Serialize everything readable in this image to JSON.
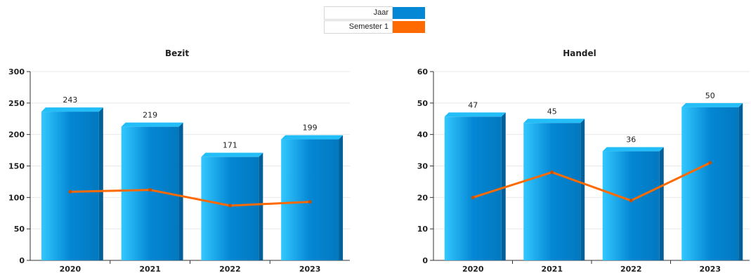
{
  "legend": {
    "items": [
      {
        "label": "Jaar",
        "color": "#0487d4"
      },
      {
        "label": "Semester 1",
        "color": "#ff6a00"
      }
    ]
  },
  "chart_data": [
    {
      "type": "bar",
      "title": "Bezit",
      "categories": [
        "2020",
        "2021",
        "2022",
        "2023"
      ],
      "series": [
        {
          "name": "Jaar",
          "type": "bar",
          "values": [
            243,
            219,
            171,
            199
          ]
        },
        {
          "name": "Semester 1",
          "type": "line",
          "values": [
            109,
            112,
            87,
            93
          ]
        }
      ],
      "ylim": [
        0,
        300
      ],
      "yticks": [
        0,
        50,
        100,
        150,
        200,
        250,
        300
      ],
      "grid": true,
      "legend": "top-center"
    },
    {
      "type": "bar",
      "title": "Handel",
      "categories": [
        "2020",
        "2021",
        "2022",
        "2023"
      ],
      "series": [
        {
          "name": "Jaar",
          "type": "bar",
          "values": [
            47,
            45,
            36,
            50
          ]
        },
        {
          "name": "Semester 1",
          "type": "line",
          "values": [
            20,
            28,
            19,
            31
          ]
        }
      ],
      "ylim": [
        0,
        60
      ],
      "yticks": [
        0,
        10,
        20,
        30,
        40,
        50,
        60
      ],
      "grid": true,
      "legend": "top-center"
    }
  ]
}
